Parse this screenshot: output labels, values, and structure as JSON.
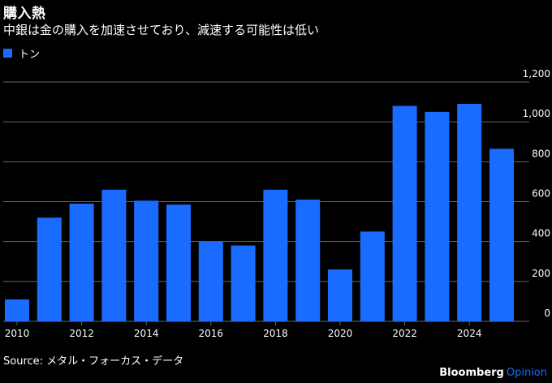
{
  "header": {
    "title": "購入熱",
    "subtitle": "中銀は金の購入を加速させており、減速する可能性は低い"
  },
  "legend": {
    "label": "トン"
  },
  "source": "Source: メタル・フォーカス・データ",
  "brand": {
    "name": "Bloomberg",
    "suffix": "Opinion"
  },
  "colors": {
    "bar": "#1a6bff",
    "grid": "#666666",
    "background": "#000000",
    "brand_accent": "#1a6bff"
  },
  "chart_data": {
    "type": "bar",
    "title": "購入熱",
    "ylabel": "トン",
    "ylim": [
      0,
      1200
    ],
    "yticks": [
      "0",
      "200",
      "400",
      "600",
      "800",
      "1,000",
      "1,200"
    ],
    "yticks_values": [
      0,
      200,
      400,
      600,
      800,
      1000,
      1200
    ],
    "xtick_labels": [
      "2010",
      "2012",
      "2014",
      "2016",
      "2018",
      "2020",
      "2022",
      "2024"
    ],
    "categories": [
      2010,
      2011,
      2012,
      2013,
      2014,
      2015,
      2016,
      2017,
      2018,
      2019,
      2020,
      2021,
      2022,
      2023,
      2024,
      2025
    ],
    "values": [
      110,
      520,
      590,
      660,
      605,
      585,
      400,
      380,
      660,
      610,
      260,
      450,
      1080,
      1050,
      1090,
      865
    ]
  }
}
